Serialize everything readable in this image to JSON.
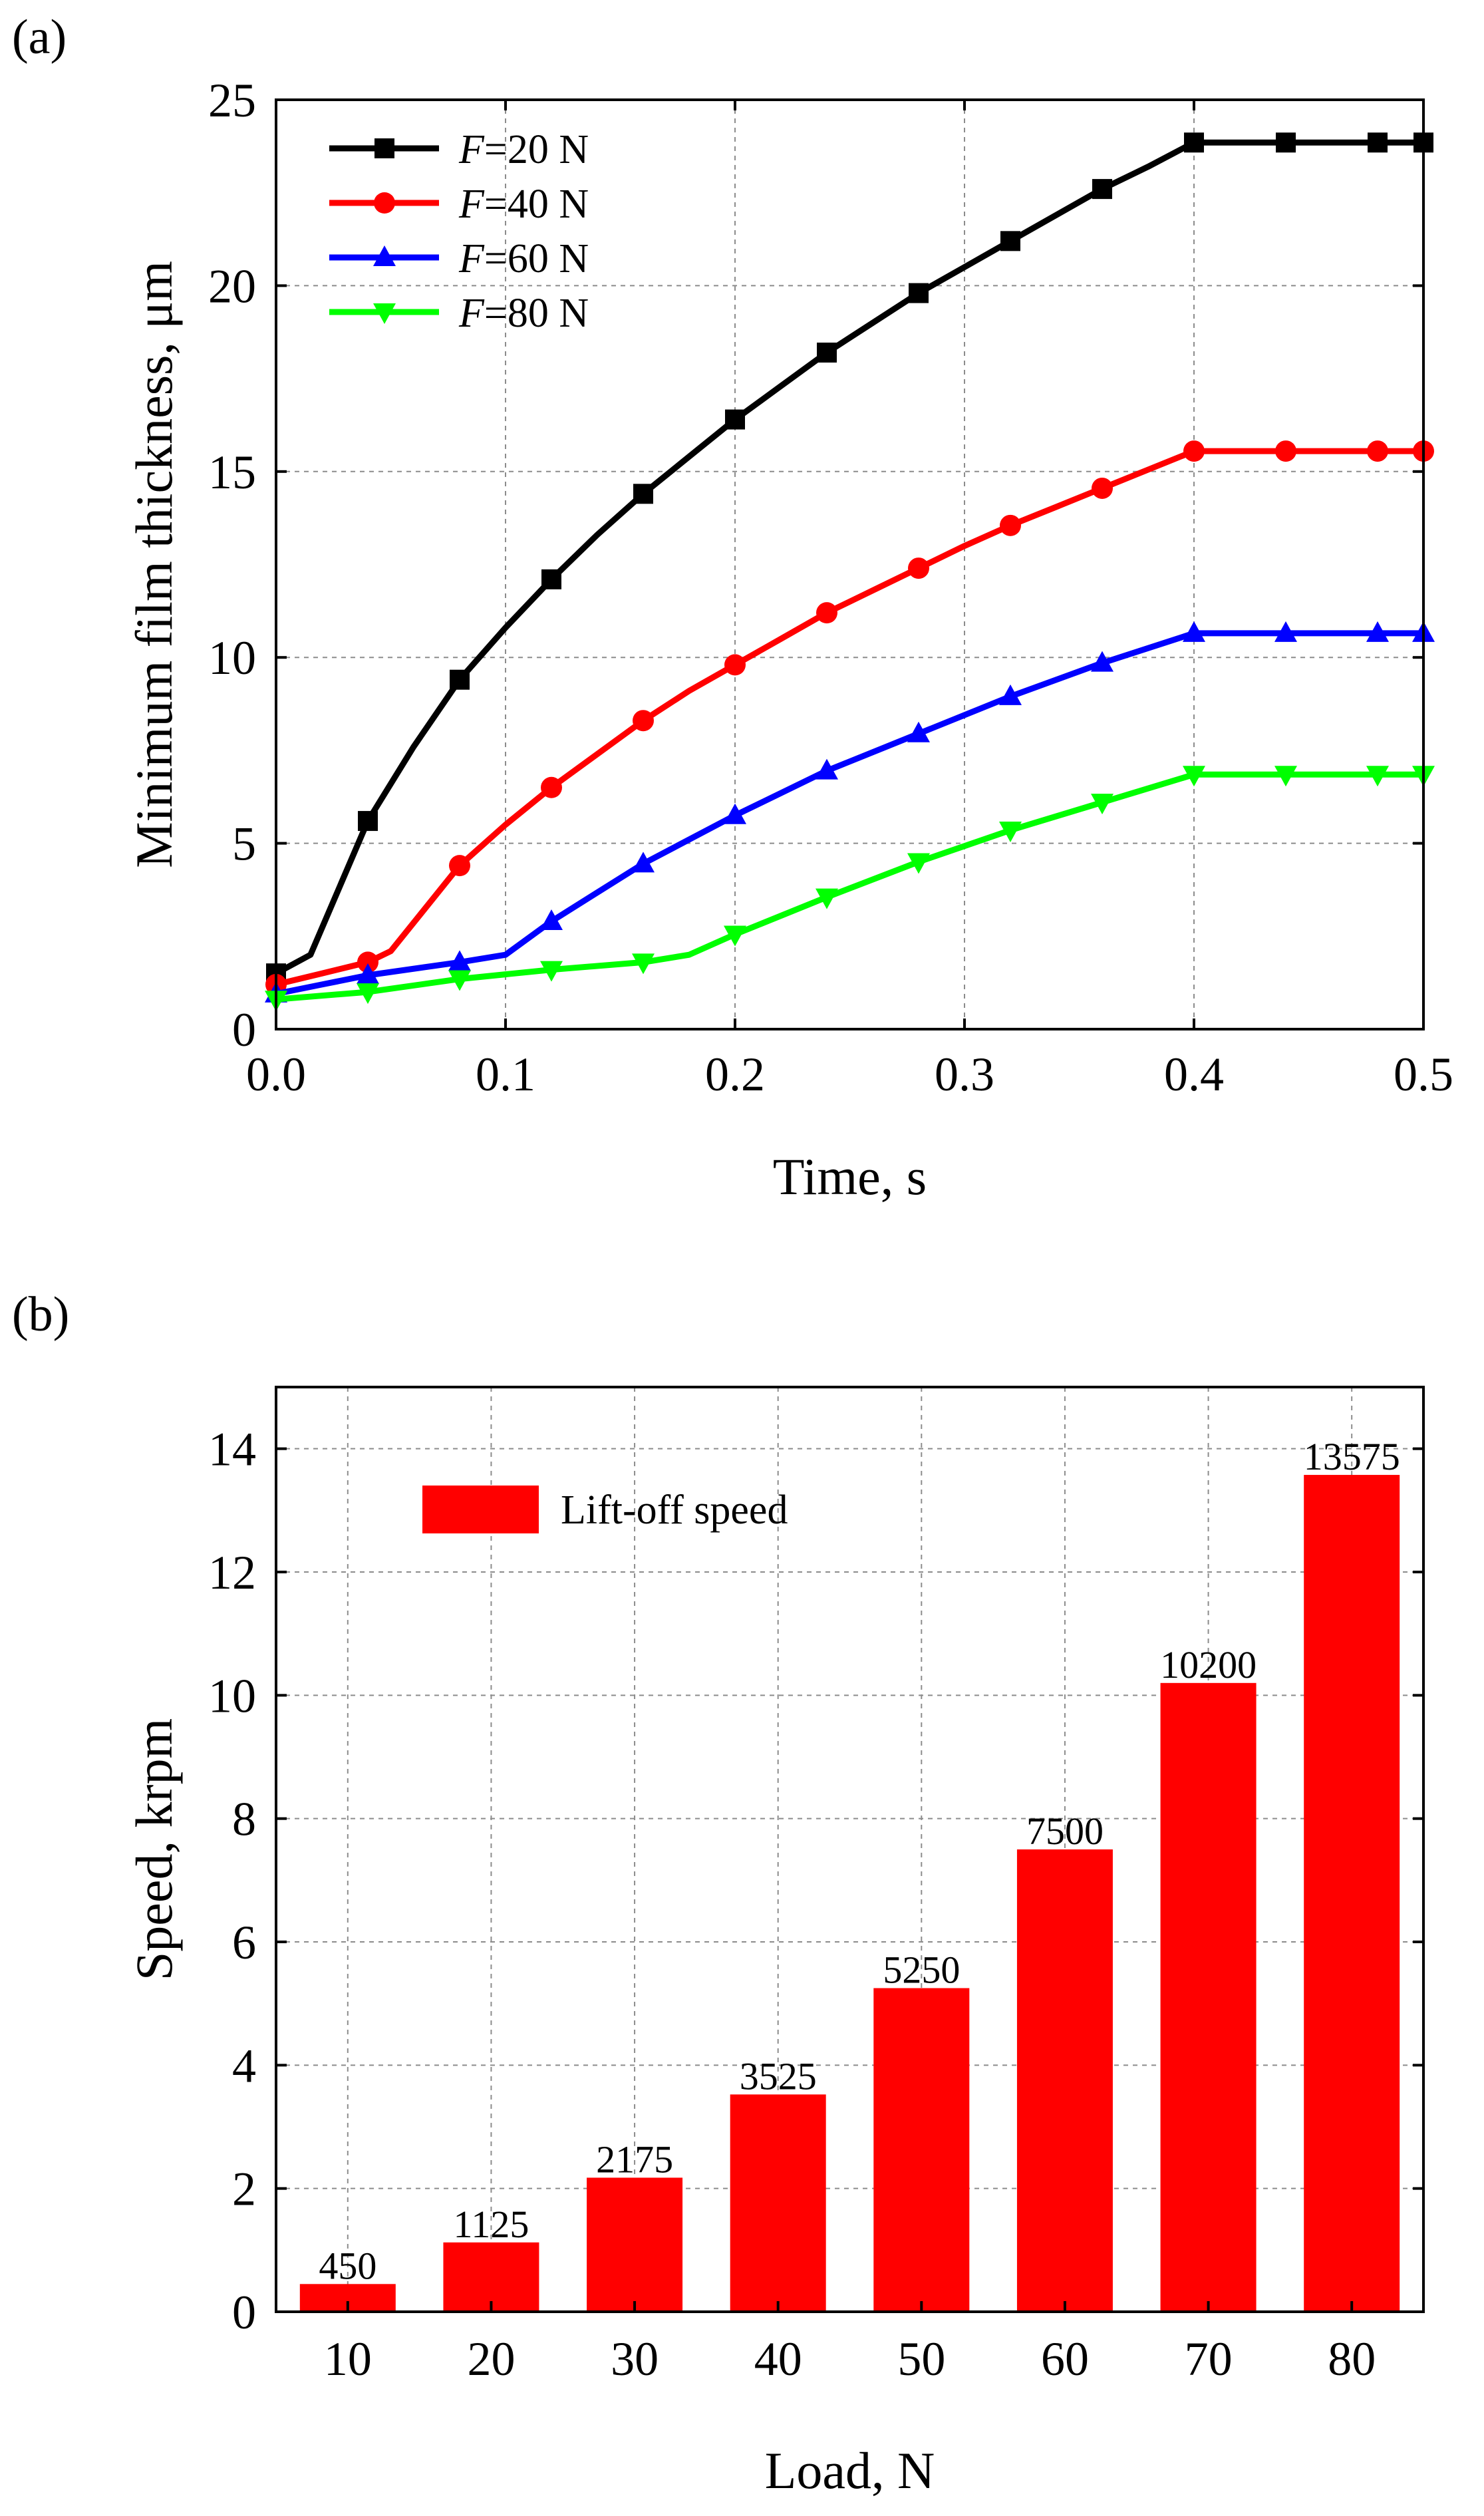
{
  "figure": {
    "panel_a_label": "(a)",
    "panel_b_label": "(b)"
  },
  "chart_data": [
    {
      "type": "line",
      "panel": "(a)",
      "title": "",
      "xlabel": "Time, s",
      "ylabel": "Minimum film thickness, μm",
      "xlim": [
        0,
        0.5
      ],
      "ylim": [
        0,
        25
      ],
      "xticks": [
        "0.0",
        "0.1",
        "0.2",
        "0.3",
        "0.4",
        "0.5"
      ],
      "yticks": [
        "0",
        "5",
        "10",
        "15",
        "20",
        "25"
      ],
      "grid": true,
      "legend_position": "top-left",
      "series": [
        {
          "name": "F=20 N",
          "italic_prefix": "F",
          "suffix": "=20 N",
          "color": "#000000",
          "marker": "square",
          "x": [
            0,
            0.015,
            0.04,
            0.06,
            0.08,
            0.1,
            0.12,
            0.14,
            0.16,
            0.18,
            0.2,
            0.22,
            0.24,
            0.26,
            0.28,
            0.3,
            0.32,
            0.34,
            0.36,
            0.38,
            0.4,
            0.42,
            0.44,
            0.46,
            0.48,
            0.5
          ],
          "y": [
            1.5,
            2.0,
            5.6,
            7.6,
            9.4,
            10.8,
            12.1,
            13.3,
            14.4,
            15.4,
            16.4,
            17.3,
            18.2,
            19.0,
            19.8,
            20.5,
            21.2,
            21.9,
            22.6,
            23.2,
            23.85,
            23.85,
            23.85,
            23.85,
            23.85,
            23.85
          ],
          "marker_x": [
            0,
            0.04,
            0.08,
            0.12,
            0.16,
            0.2,
            0.24,
            0.28,
            0.32,
            0.36,
            0.4,
            0.44,
            0.48,
            0.5
          ]
        },
        {
          "name": "F=40 N",
          "italic_prefix": "F",
          "suffix": "=40 N",
          "color": "#ff0000",
          "marker": "circle",
          "x": [
            0,
            0.02,
            0.04,
            0.05,
            0.08,
            0.1,
            0.12,
            0.14,
            0.16,
            0.18,
            0.2,
            0.22,
            0.24,
            0.26,
            0.28,
            0.3,
            0.32,
            0.34,
            0.36,
            0.38,
            0.4,
            0.42,
            0.44,
            0.46,
            0.48,
            0.5
          ],
          "y": [
            1.2,
            1.5,
            1.8,
            2.1,
            4.4,
            5.5,
            6.5,
            7.4,
            8.3,
            9.1,
            9.8,
            10.5,
            11.2,
            11.8,
            12.4,
            13.0,
            13.55,
            14.05,
            14.55,
            15.05,
            15.55,
            15.55,
            15.55,
            15.55,
            15.55,
            15.55
          ],
          "marker_x": [
            0,
            0.04,
            0.08,
            0.12,
            0.16,
            0.2,
            0.24,
            0.28,
            0.32,
            0.36,
            0.4,
            0.44,
            0.48,
            0.5
          ]
        },
        {
          "name": "F=60 N",
          "italic_prefix": "F",
          "suffix": "=60 N",
          "color": "#0000ff",
          "marker": "triangle-up",
          "x": [
            0,
            0.02,
            0.04,
            0.08,
            0.1,
            0.12,
            0.16,
            0.2,
            0.24,
            0.28,
            0.32,
            0.36,
            0.4,
            0.44,
            0.48,
            0.5
          ],
          "y": [
            0.95,
            1.2,
            1.45,
            1.8,
            2.0,
            2.9,
            4.45,
            5.75,
            6.95,
            7.95,
            8.95,
            9.85,
            10.65,
            10.65,
            10.65,
            10.65
          ],
          "marker_x": [
            0,
            0.04,
            0.08,
            0.12,
            0.16,
            0.2,
            0.24,
            0.28,
            0.32,
            0.36,
            0.4,
            0.44,
            0.48,
            0.5
          ]
        },
        {
          "name": "F=80 N",
          "italic_prefix": "F",
          "suffix": "=80 N",
          "color": "#00ff00",
          "marker": "triangle-down",
          "x": [
            0,
            0.04,
            0.08,
            0.12,
            0.16,
            0.18,
            0.2,
            0.24,
            0.28,
            0.32,
            0.36,
            0.4,
            0.44,
            0.48,
            0.5
          ],
          "y": [
            0.8,
            1.0,
            1.35,
            1.6,
            1.8,
            2.0,
            2.55,
            3.55,
            4.5,
            5.35,
            6.1,
            6.85,
            6.85,
            6.85,
            6.85
          ],
          "marker_x": [
            0,
            0.04,
            0.08,
            0.12,
            0.16,
            0.2,
            0.24,
            0.28,
            0.32,
            0.36,
            0.4,
            0.44,
            0.48,
            0.5
          ]
        }
      ]
    },
    {
      "type": "bar",
      "panel": "(b)",
      "title": "",
      "xlabel": "Load, N",
      "ylabel": "Speed, krpm",
      "categories": [
        "10",
        "20",
        "30",
        "40",
        "50",
        "60",
        "70",
        "80"
      ],
      "values": [
        0.45,
        1.125,
        2.175,
        3.525,
        5.25,
        7.5,
        10.2,
        13.575
      ],
      "value_labels": [
        "450",
        "1125",
        "2175",
        "3525",
        "5250",
        "7500",
        "10200",
        "13575"
      ],
      "ylim": [
        0,
        15
      ],
      "yticks": [
        "0",
        "2",
        "4",
        "6",
        "8",
        "10",
        "12",
        "14"
      ],
      "grid": true,
      "legend_position": "top-left",
      "legend": [
        "Lift-off speed"
      ],
      "color": "#ff0000"
    }
  ]
}
